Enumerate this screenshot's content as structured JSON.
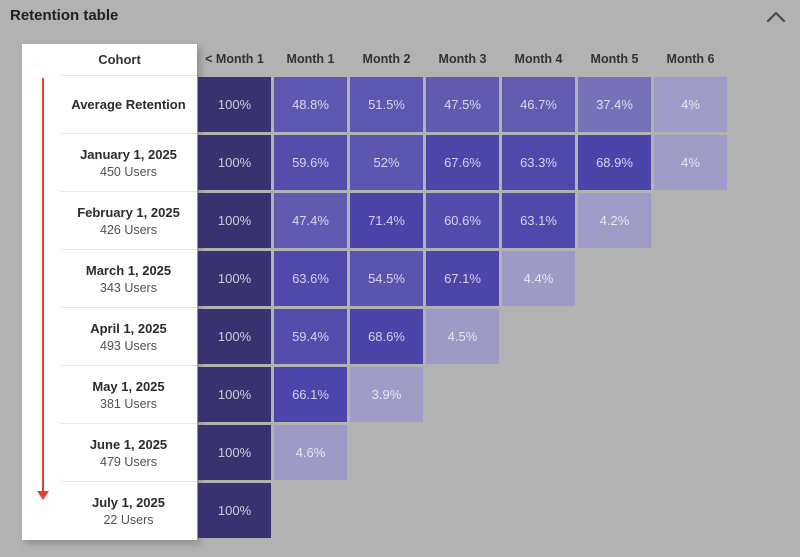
{
  "widget": {
    "title": "Retention table",
    "collapse_icon": "chevron-up"
  },
  "table": {
    "cohort_column_header": "Cohort"
  },
  "chart_data": {
    "type": "heatmap",
    "title": "Retention table",
    "columns": [
      "< Month 1",
      "Month 1",
      "Month 2",
      "Month 3",
      "Month 4",
      "Month 5",
      "Month 6"
    ],
    "rows": [
      {
        "cohort": "Average Retention",
        "users": null,
        "values_percent": [
          100,
          48.8,
          51.5,
          47.5,
          46.7,
          37.4,
          4
        ]
      },
      {
        "cohort": "January 1, 2025",
        "users": "450 Users",
        "values_percent": [
          100,
          59.6,
          52,
          67.6,
          63.3,
          68.9,
          4
        ]
      },
      {
        "cohort": "February 1, 2025",
        "users": "426 Users",
        "values_percent": [
          100,
          47.4,
          71.4,
          60.6,
          63.1,
          4.2
        ]
      },
      {
        "cohort": "March 1, 2025",
        "users": "343 Users",
        "values_percent": [
          100,
          63.6,
          54.5,
          67.1,
          4.4
        ]
      },
      {
        "cohort": "April 1, 2025",
        "users": "493 Users",
        "values_percent": [
          100,
          59.4,
          68.6,
          4.5
        ]
      },
      {
        "cohort": "May 1, 2025",
        "users": "381 Users",
        "values_percent": [
          100,
          66.1,
          3.9
        ]
      },
      {
        "cohort": "June 1, 2025",
        "users": "479 Users",
        "values_percent": [
          100,
          4.6
        ]
      },
      {
        "cohort": "July 1, 2025",
        "users": "22 Users",
        "values_percent": [
          100
        ]
      }
    ],
    "value_format": "percent",
    "layout_hints": {
      "legend": "none",
      "grid": "off",
      "cohort_axis_direction": "top-to-bottom"
    },
    "color_scale": {
      "stops": [
        [
          0,
          "#a6a4cc"
        ],
        [
          5,
          "#9c9ac5"
        ],
        [
          37,
          "#7773b9"
        ],
        [
          47,
          "#605bb0"
        ],
        [
          55,
          "#5853ae"
        ],
        [
          65,
          "#4d47aa"
        ],
        [
          75,
          "#4842a7"
        ],
        [
          100,
          "#393270"
        ]
      ]
    }
  },
  "colors": {
    "canvas_background": "#b2b2b2",
    "panel_background": "#ffffff",
    "arrow": "#e8402a",
    "cell_text": "rgba(255,255,255,0.75)",
    "column_header_text": "#333333",
    "cohort_label_text": "#2b2b30",
    "cohort_sublabel_text": "#50505a",
    "row_divider": "#e6e6e6",
    "title_text": "#1f1f24",
    "chevron": "#4a4a4a"
  }
}
